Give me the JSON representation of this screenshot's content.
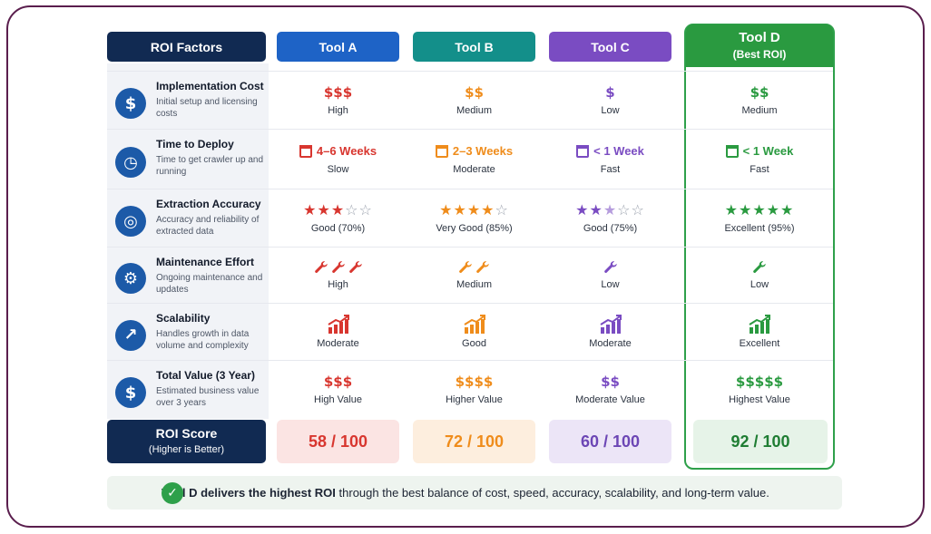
{
  "colors": {
    "tool_a": "#1e63c6",
    "tool_b": "#138f8a",
    "tool_c": "#7a4cc2",
    "tool_d": "#2a9a40",
    "roi": "#112a52",
    "red": "#d8362f",
    "orange": "#ef8c1b",
    "purple": "#7a4cc2",
    "green": "#2a9a40"
  },
  "header": {
    "factors_label": "ROI Factors",
    "tool_a": "Tool A",
    "tool_b": "Tool B",
    "tool_c": "Tool C",
    "tool_d": "Tool D",
    "tool_d_sub": "(Best ROI)"
  },
  "factors": [
    {
      "title": "Implementation Cost",
      "desc": "Initial setup and licensing costs",
      "icon": "dollar-icon"
    },
    {
      "title": "Time to Deploy",
      "desc": "Time to get crawler up and running",
      "icon": "clock-icon"
    },
    {
      "title": "Extraction Accuracy",
      "desc": "Accuracy and reliability of extracted data",
      "icon": "target-icon"
    },
    {
      "title": "Maintenance Effort",
      "desc": "Ongoing maintenance and updates",
      "icon": "gear-icon"
    },
    {
      "title": "Scalability",
      "desc": "Handles growth in data volume and complexity",
      "icon": "trend-up-icon"
    },
    {
      "title": "Total Value (3 Year)",
      "desc": "Estimated business value over 3 years",
      "icon": "dollar-icon"
    }
  ],
  "tools": [
    {
      "cost_sym": "$$$",
      "cost_label": "High",
      "deploy_sym": "4–6 Weeks",
      "deploy_label": "Slow",
      "accuracy_stars": 3,
      "accuracy_label": "Good (70%)",
      "maint_count": 3,
      "maint_label": "High",
      "scal_label": "Moderate",
      "value_sym": "$$$",
      "value_label": "High Value",
      "score": "58 / 100"
    },
    {
      "cost_sym": "$$",
      "cost_label": "Medium",
      "deploy_sym": "2–3 Weeks",
      "deploy_label": "Moderate",
      "accuracy_stars": 4,
      "accuracy_label": "Very Good (85%)",
      "maint_count": 2,
      "maint_label": "Medium",
      "scal_label": "Good",
      "value_sym": "$$$$",
      "value_label": "Higher Value",
      "score": "72 / 100"
    },
    {
      "cost_sym": "$",
      "cost_label": "Low",
      "deploy_sym": "< 1 Week",
      "deploy_label": "Fast",
      "accuracy_stars": 2.5,
      "accuracy_label": "Good (75%)",
      "maint_count": 1,
      "maint_label": "Low",
      "scal_label": "Moderate",
      "value_sym": "$$",
      "value_label": "Moderate Value",
      "score": "60 / 100"
    },
    {
      "cost_sym": "$$",
      "cost_label": "Medium",
      "deploy_sym": "< 1 Week",
      "deploy_label": "Fast",
      "accuracy_stars": 5,
      "accuracy_label": "Excellent (95%)",
      "maint_count": 1,
      "maint_label": "Low",
      "scal_label": "Excellent",
      "value_sym": "$$$$$",
      "value_label": "Highest Value",
      "score": "92 / 100"
    }
  ],
  "roi_score": {
    "title": "ROI Score",
    "sub": "(Higher is Better)"
  },
  "banner": {
    "bold": "Tool D delivers the highest ROI",
    "rest": " through the best balance of cost, speed, accuracy, scalability, and long-term value."
  }
}
